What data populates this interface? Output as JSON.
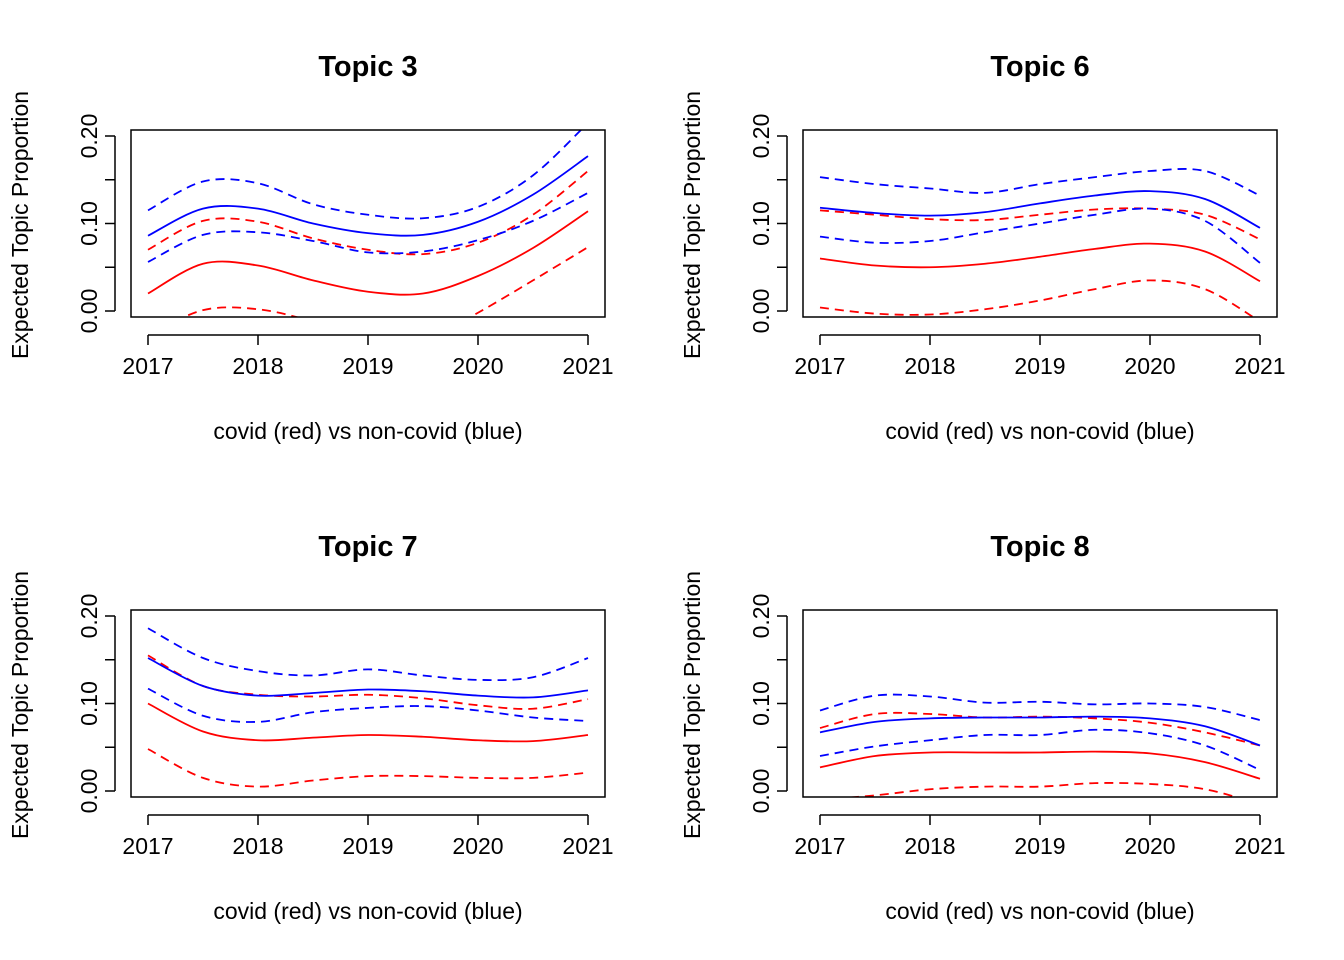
{
  "chart_data": [
    {
      "type": "line",
      "title": "Topic 3",
      "xlabel": "covid (red) vs non-covid (blue)",
      "ylabel": "Expected Topic Proportion",
      "xlim": [
        2017,
        2021
      ],
      "ylim": [
        0.0,
        0.2
      ],
      "xticks": [
        "2017",
        "2018",
        "2019",
        "2020",
        "2021"
      ],
      "yticks": [
        "0.00",
        "0.10",
        "0.20"
      ],
      "x": [
        2017,
        2017.5,
        2018,
        2018.5,
        2019,
        2019.5,
        2020,
        2020.5,
        2021
      ],
      "series": [
        {
          "color": "#ff0000",
          "style": "solid",
          "values": [
            0.02,
            0.054,
            0.052,
            0.035,
            0.022,
            0.02,
            0.04,
            0.072,
            0.114
          ]
        },
        {
          "color": "#ff0000",
          "style": "dashed",
          "values": [
            -0.028,
            0.001,
            0.002,
            -0.012,
            -0.032,
            -0.035,
            -0.002,
            0.035,
            0.073
          ]
        },
        {
          "color": "#ff0000",
          "style": "dashed",
          "values": [
            0.07,
            0.103,
            0.102,
            0.083,
            0.07,
            0.065,
            0.078,
            0.11,
            0.16
          ]
        },
        {
          "color": "#0000ff",
          "style": "solid",
          "values": [
            0.086,
            0.117,
            0.117,
            0.1,
            0.089,
            0.087,
            0.102,
            0.133,
            0.177
          ]
        },
        {
          "color": "#0000ff",
          "style": "dashed",
          "values": [
            0.056,
            0.087,
            0.09,
            0.08,
            0.067,
            0.068,
            0.081,
            0.103,
            0.135
          ]
        },
        {
          "color": "#0000ff",
          "style": "dashed",
          "values": [
            0.115,
            0.148,
            0.146,
            0.122,
            0.11,
            0.106,
            0.119,
            0.155,
            0.215
          ]
        }
      ]
    },
    {
      "type": "line",
      "title": "Topic 6",
      "xlabel": "covid (red) vs non-covid (blue)",
      "ylabel": "Expected Topic Proportion",
      "xlim": [
        2017,
        2021
      ],
      "ylim": [
        0.0,
        0.2
      ],
      "xticks": [
        "2017",
        "2018",
        "2019",
        "2020",
        "2021"
      ],
      "yticks": [
        "0.00",
        "0.10",
        "0.20"
      ],
      "x": [
        2017,
        2017.5,
        2018,
        2018.5,
        2019,
        2019.5,
        2020,
        2020.5,
        2021
      ],
      "series": [
        {
          "color": "#ff0000",
          "style": "solid",
          "values": [
            0.06,
            0.052,
            0.05,
            0.054,
            0.062,
            0.071,
            0.077,
            0.068,
            0.034
          ]
        },
        {
          "color": "#ff0000",
          "style": "dashed",
          "values": [
            0.004,
            -0.003,
            -0.004,
            0.002,
            0.012,
            0.025,
            0.035,
            0.025,
            -0.012
          ]
        },
        {
          "color": "#ff0000",
          "style": "dashed",
          "values": [
            0.115,
            0.11,
            0.105,
            0.104,
            0.11,
            0.116,
            0.117,
            0.11,
            0.082
          ]
        },
        {
          "color": "#0000ff",
          "style": "solid",
          "values": [
            0.118,
            0.112,
            0.109,
            0.113,
            0.123,
            0.132,
            0.137,
            0.128,
            0.095
          ]
        },
        {
          "color": "#0000ff",
          "style": "dashed",
          "values": [
            0.085,
            0.078,
            0.08,
            0.09,
            0.1,
            0.11,
            0.117,
            0.103,
            0.055
          ]
        },
        {
          "color": "#0000ff",
          "style": "dashed",
          "values": [
            0.153,
            0.145,
            0.14,
            0.135,
            0.145,
            0.153,
            0.16,
            0.16,
            0.132
          ]
        }
      ]
    },
    {
      "type": "line",
      "title": "Topic 7",
      "xlabel": "covid (red) vs non-covid (blue)",
      "ylabel": "Expected Topic Proportion",
      "xlim": [
        2017,
        2021
      ],
      "ylim": [
        0.0,
        0.2
      ],
      "xticks": [
        "2017",
        "2018",
        "2019",
        "2020",
        "2021"
      ],
      "yticks": [
        "0.00",
        "0.10",
        "0.20"
      ],
      "x": [
        2017,
        2017.5,
        2018,
        2018.5,
        2019,
        2019.5,
        2020,
        2020.5,
        2021
      ],
      "series": [
        {
          "color": "#ff0000",
          "style": "solid",
          "values": [
            0.1,
            0.068,
            0.058,
            0.061,
            0.064,
            0.062,
            0.058,
            0.057,
            0.064
          ]
        },
        {
          "color": "#ff0000",
          "style": "dashed",
          "values": [
            0.048,
            0.015,
            0.005,
            0.012,
            0.017,
            0.017,
            0.015,
            0.015,
            0.021
          ]
        },
        {
          "color": "#ff0000",
          "style": "dashed",
          "values": [
            0.155,
            0.12,
            0.11,
            0.108,
            0.11,
            0.106,
            0.098,
            0.094,
            0.105
          ]
        },
        {
          "color": "#0000ff",
          "style": "solid",
          "values": [
            0.152,
            0.12,
            0.109,
            0.112,
            0.116,
            0.114,
            0.109,
            0.107,
            0.115
          ]
        },
        {
          "color": "#0000ff",
          "style": "dashed",
          "values": [
            0.117,
            0.086,
            0.079,
            0.09,
            0.095,
            0.097,
            0.092,
            0.084,
            0.08
          ]
        },
        {
          "color": "#0000ff",
          "style": "dashed",
          "values": [
            0.186,
            0.152,
            0.137,
            0.132,
            0.139,
            0.132,
            0.127,
            0.13,
            0.152
          ]
        }
      ]
    },
    {
      "type": "line",
      "title": "Topic 8",
      "xlabel": "covid (red) vs non-covid (blue)",
      "ylabel": "Expected Topic Proportion",
      "xlim": [
        2017,
        2021
      ],
      "ylim": [
        0.0,
        0.2
      ],
      "xticks": [
        "2017",
        "2018",
        "2019",
        "2020",
        "2021"
      ],
      "yticks": [
        "0.00",
        "0.10",
        "0.20"
      ],
      "x": [
        2017,
        2017.5,
        2018,
        2018.5,
        2019,
        2019.5,
        2020,
        2020.5,
        2021
      ],
      "series": [
        {
          "color": "#ff0000",
          "style": "solid",
          "values": [
            0.027,
            0.04,
            0.044,
            0.044,
            0.044,
            0.045,
            0.043,
            0.033,
            0.014
          ]
        },
        {
          "color": "#ff0000",
          "style": "dashed",
          "values": [
            -0.01,
            -0.005,
            0.002,
            0.005,
            0.005,
            0.009,
            0.008,
            0.002,
            -0.015
          ]
        },
        {
          "color": "#ff0000",
          "style": "dashed",
          "values": [
            0.072,
            0.088,
            0.088,
            0.084,
            0.085,
            0.083,
            0.078,
            0.067,
            0.052
          ]
        },
        {
          "color": "#0000ff",
          "style": "solid",
          "values": [
            0.067,
            0.079,
            0.083,
            0.084,
            0.084,
            0.085,
            0.083,
            0.074,
            0.052
          ]
        },
        {
          "color": "#0000ff",
          "style": "dashed",
          "values": [
            0.04,
            0.051,
            0.058,
            0.064,
            0.064,
            0.07,
            0.066,
            0.052,
            0.024
          ]
        },
        {
          "color": "#0000ff",
          "style": "dashed",
          "values": [
            0.092,
            0.109,
            0.108,
            0.101,
            0.102,
            0.099,
            0.1,
            0.096,
            0.081
          ]
        }
      ]
    }
  ]
}
